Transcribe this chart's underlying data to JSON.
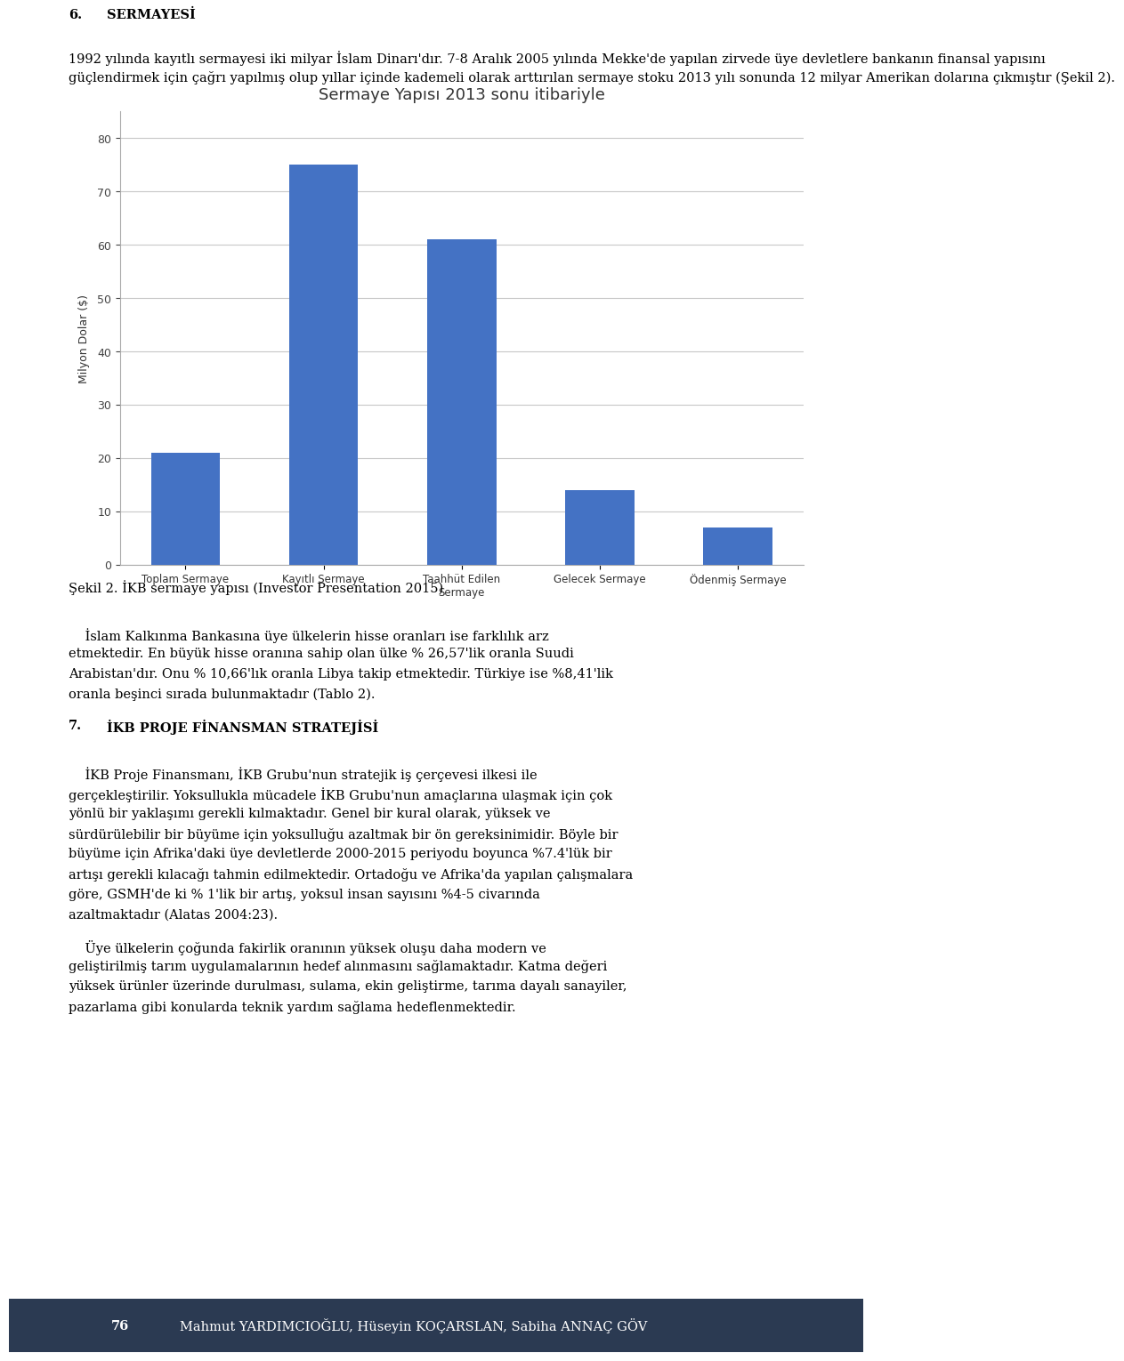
{
  "title": "Sermaye Yapısı 2013 sonu itibariyle",
  "categories": [
    "Toplam Sermaye",
    "Kayıtlı Sermaye",
    "Taahhüt Edilen\nSermaye",
    "Gelecek Sermaye",
    "Ödenmiş Sermaye"
  ],
  "values": [
    21,
    75,
    61,
    14,
    7
  ],
  "bar_color": "#4472C4",
  "ylabel": "Milyon Dolar ($)",
  "ylim": [
    0,
    85
  ],
  "yticks": [
    0,
    10,
    20,
    30,
    40,
    50,
    60,
    70,
    80
  ],
  "background_color": "#FFFFFF",
  "chart_bg": "#FFFFFF",
  "grid_color": "#C8C8C8",
  "title_fontsize": 13,
  "label_fontsize": 8.5,
  "ylabel_fontsize": 9,
  "heading": "6. SERMAYESİ",
  "para1": "1992 yılında kayıtlı sermayesi iki milyar İslam Dinarı’dır. 7-8 Aralık 2005 yılında Mekke’de yapılan zirvede üye devletlere bankanın finansal yapısını güçlendirmek için çağrı yapılmış olup yıllar içinde kademeli olarak arttırılan sermaye stoku 2013 yılı sonunda 12 milyar Amerikan dolarına çıkmıştır (Şekil 2).",
  "caption": "Şekil 2. İKB sermaye yapısı (Investor Presentation 2015)",
  "para2_label": "İslam Kalkınma Bankasına üye ülkelerin hisse oranları ise farklılık arz etmektedir. En büyük hisse oranına sahip olan ülke % 26,57’lik oranla Suudi Arabistan’dır. Onu % 10,66’lık oranla Libya takip etmektedir. Türkiye ise %8,41’lik oranla beşinci sırada bulunmaktadır (Tablo 2).",
  "section7_heading": "7. İKB PROJE FİNANSMAN STRATEJİSİ",
  "para3": "İKB Proje Finansmanı, İKB Grubu’nun stratejik iş çerçevesi ilkesi ile gerçekleştirilir. Yoksullukla mücadele İKB Grubu’nun amaçlarına ulaşmak için çok yönlü bir yaklaşımı gerekli kılmaktadır. Genel bir kural olarak, yüksek ve sürdürülebilir bir büyüme için yoksulluğu azaltmak bir ön gereksinimidir. Böyle bir büyüme için Afrika’daki üye devletlerde 2000-2015 periyodu boyunca %7.4’lük bir artışı gerekli kılacağı tahmin edilmektedir. Ortadoğu ve Afrika’da yapılan çalışmalara göre, GSMH’de ki % 1’lik bir artış, yoksul insan sayısını %4-5 civarında azaltmaktadır (Alatas 2004:23).",
  "para4": "Üye ülkelerin çoğundda fakirlik oranının yüksek oluşu daha modern ve geliştirilmiş tarım uygulamalarının hedef alınmasını sağlamaktadır. Katma değeri yüksek ürünler üzerinde durulması, sulama, ekin geliştirme, tarıma dayalı sanayiler, pazarlama gibi konularda teknik yardım sağlama hedeflenmektedir.",
  "footer_text": "76  Mahmut YARDIMCIOĞLU, Hüseyin KOÇARSLAN, Sabiha ANNAÇ GÖV",
  "footer_bg": "#2B3A52",
  "body_fontsize": 10.5,
  "body_font": "serif"
}
